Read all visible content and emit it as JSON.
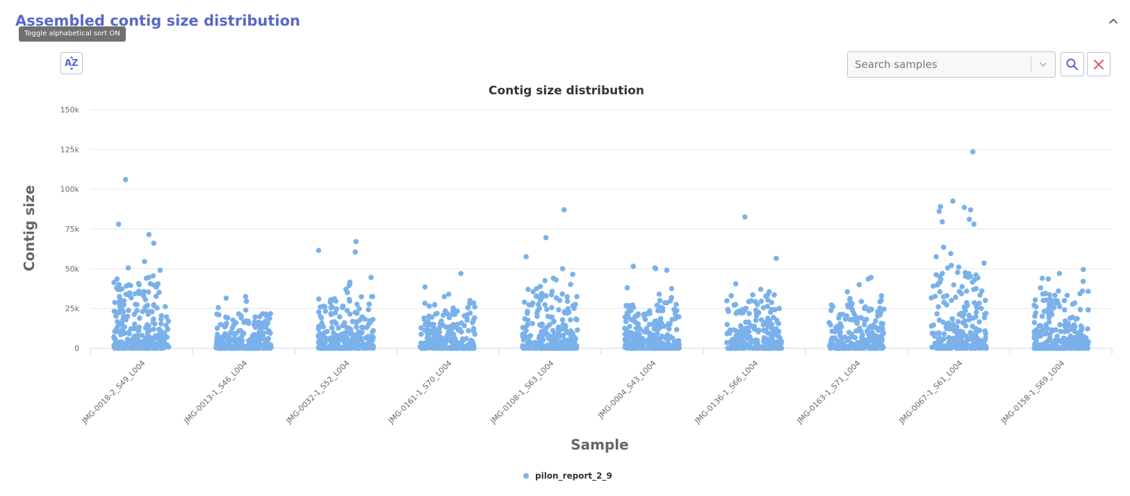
{
  "section": {
    "title": "Assembled contig size distribution"
  },
  "toolbar": {
    "sort_tooltip": "Toggle alphabetical sort ON",
    "sort_icon": "sort-alpha-icon",
    "search_placeholder": "Search samples",
    "search_icon": "search-icon",
    "clear_icon": "close-icon",
    "collapse_icon": "chevron-up-icon"
  },
  "colors": {
    "title": "#5a67c7",
    "point": "#7ab1eb",
    "close": "#e05a5a",
    "grid": "#e6e6e6"
  },
  "chart_data": {
    "type": "scatter",
    "title": "Contig size distribution",
    "xlabel": "Sample",
    "ylabel": "Contig size",
    "ylim": [
      0,
      150000
    ],
    "yticks": [
      {
        "value": 0,
        "label": "0"
      },
      {
        "value": 25000,
        "label": "25k"
      },
      {
        "value": 50000,
        "label": "50k"
      },
      {
        "value": 75000,
        "label": "75k"
      },
      {
        "value": 100000,
        "label": "100k"
      },
      {
        "value": 125000,
        "label": "125k"
      },
      {
        "value": 150000,
        "label": "150k"
      }
    ],
    "grid": true,
    "legend_position": "bottom-center",
    "categories": [
      "JMG-0018-2_S49_L004",
      "JMG-0013-1_S46_L004",
      "JMG-0032-1_S52_L004",
      "JMG-0161-1_S70_L004",
      "JMG-0108-1_S63_L004",
      "JMG-0004_S43_L004",
      "JMG-0136-1_S66_L004",
      "JMG-0163-1_S71_L004",
      "JMG-0067-1_S61_L004",
      "JMG-0158-1_S69_L004"
    ],
    "series": [
      {
        "name": "pilon_report_2_9",
        "color": "#7ab1eb",
        "points": [
          {
            "category": "JMG-0018-2_S49_L004",
            "y": 106000
          },
          {
            "category": "JMG-0018-2_S49_L004",
            "y": 78000
          },
          {
            "category": "JMG-0018-2_S49_L004",
            "y": 71500
          },
          {
            "category": "JMG-0018-2_S49_L004",
            "y": 66000
          },
          {
            "category": "JMG-0018-2_S49_L004",
            "y": 54500
          },
          {
            "category": "JMG-0018-2_S49_L004",
            "y": 50500
          },
          {
            "category": "JMG-0018-2_S49_L004",
            "y": 49000
          },
          {
            "category": "JMG-0018-2_S49_L004",
            "y": 45500
          },
          {
            "category": "JMG-0018-2_S49_L004",
            "y": 44500
          },
          {
            "category": "JMG-0018-2_S49_L004",
            "y": 44000
          },
          {
            "category": "JMG-0018-2_S49_L004",
            "y": 43500
          },
          {
            "category": "JMG-0013-1_S46_L004",
            "y": 32500
          },
          {
            "category": "JMG-0013-1_S46_L004",
            "y": 31500
          },
          {
            "category": "JMG-0013-1_S46_L004",
            "y": 29500
          },
          {
            "category": "JMG-0013-1_S46_L004",
            "y": 25500
          },
          {
            "category": "JMG-0013-1_S46_L004",
            "y": 24000
          },
          {
            "category": "JMG-0032-1_S52_L004",
            "y": 67000
          },
          {
            "category": "JMG-0032-1_S52_L004",
            "y": 61500
          },
          {
            "category": "JMG-0032-1_S52_L004",
            "y": 60500
          },
          {
            "category": "JMG-0032-1_S52_L004",
            "y": 44500
          },
          {
            "category": "JMG-0032-1_S52_L004",
            "y": 41500
          },
          {
            "category": "JMG-0032-1_S52_L004",
            "y": 40500
          },
          {
            "category": "JMG-0032-1_S52_L004",
            "y": 39500
          },
          {
            "category": "JMG-0032-1_S52_L004",
            "y": 37000
          },
          {
            "category": "JMG-0032-1_S52_L004",
            "y": 35000
          },
          {
            "category": "JMG-0161-1_S70_L004",
            "y": 47000
          },
          {
            "category": "JMG-0161-1_S70_L004",
            "y": 38500
          },
          {
            "category": "JMG-0161-1_S70_L004",
            "y": 34000
          },
          {
            "category": "JMG-0161-1_S70_L004",
            "y": 32500
          },
          {
            "category": "JMG-0161-1_S70_L004",
            "y": 30000
          },
          {
            "category": "JMG-0108-1_S63_L004",
            "y": 87000
          },
          {
            "category": "JMG-0108-1_S63_L004",
            "y": 69500
          },
          {
            "category": "JMG-0108-1_S63_L004",
            "y": 57500
          },
          {
            "category": "JMG-0108-1_S63_L004",
            "y": 50000
          },
          {
            "category": "JMG-0108-1_S63_L004",
            "y": 46500
          },
          {
            "category": "JMG-0108-1_S63_L004",
            "y": 44000
          },
          {
            "category": "JMG-0108-1_S63_L004",
            "y": 43000
          },
          {
            "category": "JMG-0108-1_S63_L004",
            "y": 42500
          },
          {
            "category": "JMG-0004_S43_L004",
            "y": 51500
          },
          {
            "category": "JMG-0004_S43_L004",
            "y": 50500
          },
          {
            "category": "JMG-0004_S43_L004",
            "y": 50000
          },
          {
            "category": "JMG-0004_S43_L004",
            "y": 49000
          },
          {
            "category": "JMG-0004_S43_L004",
            "y": 38000
          },
          {
            "category": "JMG-0004_S43_L004",
            "y": 37500
          },
          {
            "category": "JMG-0004_S43_L004",
            "y": 34000
          },
          {
            "category": "JMG-0136-1_S66_L004",
            "y": 82500
          },
          {
            "category": "JMG-0136-1_S66_L004",
            "y": 56500
          },
          {
            "category": "JMG-0136-1_S66_L004",
            "y": 40500
          },
          {
            "category": "JMG-0136-1_S66_L004",
            "y": 37000
          },
          {
            "category": "JMG-0136-1_S66_L004",
            "y": 35500
          },
          {
            "category": "JMG-0163-1_S71_L004",
            "y": 44500
          },
          {
            "category": "JMG-0163-1_S71_L004",
            "y": 43500
          },
          {
            "category": "JMG-0163-1_S71_L004",
            "y": 40000
          },
          {
            "category": "JMG-0163-1_S71_L004",
            "y": 35500
          },
          {
            "category": "JMG-0163-1_S71_L004",
            "y": 33000
          },
          {
            "category": "JMG-0067-1_S61_L004",
            "y": 123500
          },
          {
            "category": "JMG-0067-1_S61_L004",
            "y": 92500
          },
          {
            "category": "JMG-0067-1_S61_L004",
            "y": 89000
          },
          {
            "category": "JMG-0067-1_S61_L004",
            "y": 88500
          },
          {
            "category": "JMG-0067-1_S61_L004",
            "y": 87000
          },
          {
            "category": "JMG-0067-1_S61_L004",
            "y": 86000
          },
          {
            "category": "JMG-0067-1_S61_L004",
            "y": 81000
          },
          {
            "category": "JMG-0067-1_S61_L004",
            "y": 79500
          },
          {
            "category": "JMG-0067-1_S61_L004",
            "y": 78000
          },
          {
            "category": "JMG-0067-1_S61_L004",
            "y": 63500
          },
          {
            "category": "JMG-0067-1_S61_L004",
            "y": 59500
          },
          {
            "category": "JMG-0067-1_S61_L004",
            "y": 57500
          },
          {
            "category": "JMG-0067-1_S61_L004",
            "y": 53500
          },
          {
            "category": "JMG-0067-1_S61_L004",
            "y": 52000
          },
          {
            "category": "JMG-0067-1_S61_L004",
            "y": 51000
          },
          {
            "category": "JMG-0067-1_S61_L004",
            "y": 50500
          },
          {
            "category": "JMG-0158-1_S69_L004",
            "y": 49500
          },
          {
            "category": "JMG-0158-1_S69_L004",
            "y": 47000
          },
          {
            "category": "JMG-0158-1_S69_L004",
            "y": 44000
          },
          {
            "category": "JMG-0158-1_S69_L004",
            "y": 43500
          },
          {
            "category": "JMG-0158-1_S69_L004",
            "y": 42000
          },
          {
            "category": "JMG-0158-1_S69_L004",
            "y": 38000
          }
        ]
      }
    ]
  }
}
